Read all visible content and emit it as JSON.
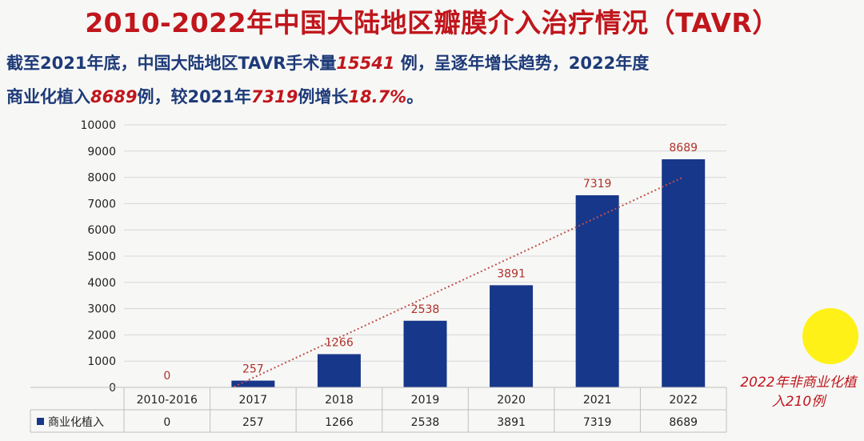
{
  "page": {
    "title": "2010-2022年中国大陆地区瓣膜介入治疗情况（TAVR）",
    "subtitle": {
      "p1": "截至2021年底，中国大陆地区TAVR手术量",
      "h1": "15541",
      "p2": " 例，呈逐年增长趋势，2022年度",
      "p3": "商业化植入",
      "h2": "8689",
      "p4": "例，较2021年",
      "h3": "7319",
      "p5": "例增长",
      "h4": "18.7%",
      "p6": "。"
    },
    "note": "2022年非商业化植入210例"
  },
  "chart_data": {
    "type": "bar",
    "categories": [
      "2010-2016",
      "2017",
      "2018",
      "2019",
      "2020",
      "2021",
      "2022"
    ],
    "series": [
      {
        "name": "商业化植入",
        "values": [
          0,
          257,
          1266,
          2538,
          3891,
          7319,
          8689
        ],
        "color": "#17378a"
      }
    ],
    "yticks": [
      "0",
      "1000",
      "2000",
      "3000",
      "4000",
      "5000",
      "6000",
      "7000",
      "8000",
      "9000",
      "10000"
    ],
    "ylim": [
      0,
      10000
    ],
    "grid": true,
    "trendline": {
      "style": "dotted",
      "color": "#c0504d"
    },
    "data_table": true,
    "label_color": "#b0302a"
  }
}
